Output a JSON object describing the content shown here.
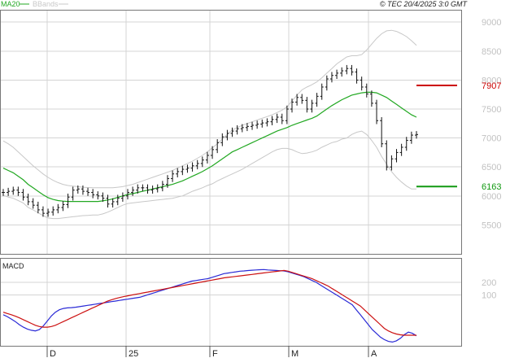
{
  "chart_data": [
    {
      "type": "candlestick",
      "credit": "© TEC 20/4/2025 3:0 GMT",
      "legend": [
        {
          "name": "MA20",
          "color": "#22a822"
        },
        {
          "name": "BBands",
          "color": "#c8c8c8"
        }
      ],
      "y_ticks": [
        "5500",
        "6000",
        "6500",
        "7000",
        "7500",
        "8000",
        "8500",
        "9000"
      ],
      "ylim": [
        5000,
        9200
      ],
      "x_ticks": [
        "D",
        "25",
        "F",
        "M",
        "A"
      ],
      "levels": [
        {
          "label": "7907",
          "value": 7907,
          "color": "#cc0000"
        },
        {
          "label": "6163",
          "value": 6163,
          "color": "#119911"
        }
      ],
      "series": {
        "close": [
          6060,
          6080,
          6100,
          6060,
          5980,
          5900,
          5840,
          5760,
          5700,
          5720,
          5760,
          5800,
          5850,
          5980,
          6100,
          6120,
          6080,
          6060,
          6020,
          6000,
          5960,
          5860,
          5900,
          5960,
          6000,
          6060,
          6100,
          6140,
          6140,
          6100,
          6120,
          6140,
          6200,
          6300,
          6380,
          6420,
          6460,
          6480,
          6520,
          6560,
          6620,
          6700,
          6800,
          6920,
          7020,
          7080,
          7120,
          7160,
          7180,
          7200,
          7220,
          7240,
          7260,
          7280,
          7320,
          7360,
          7300,
          7500,
          7620,
          7700,
          7650,
          7500,
          7600,
          7720,
          7880,
          8020,
          8080,
          8120,
          8160,
          8200,
          8140,
          8000,
          7880,
          7760,
          7600,
          7300,
          6900,
          6500,
          6640,
          6750,
          6840,
          6960,
          7050,
          7060
        ],
        "ma20": [
          6480,
          6440,
          6400,
          6340,
          6280,
          6200,
          6140,
          6080,
          6020,
          5970,
          5940,
          5920,
          5910,
          5905,
          5905,
          5905,
          5905,
          5905,
          5905,
          5905,
          5915,
          5930,
          5950,
          5975,
          6000,
          6025,
          6040,
          6060,
          6080,
          6100,
          6120,
          6140,
          6160,
          6180,
          6200,
          6230,
          6260,
          6300,
          6340,
          6380,
          6420,
          6470,
          6520,
          6580,
          6640,
          6700,
          6760,
          6800,
          6840,
          6880,
          6920,
          6960,
          7000,
          7040,
          7080,
          7120,
          7150,
          7180,
          7220,
          7250,
          7280,
          7310,
          7340,
          7380,
          7440,
          7500,
          7560,
          7610,
          7660,
          7700,
          7740,
          7760,
          7780,
          7790,
          7790,
          7780,
          7740,
          7700,
          7640,
          7580,
          7520,
          7460,
          7400,
          7360
        ],
        "bb_upper": [
          6950,
          6900,
          6840,
          6760,
          6680,
          6600,
          6520,
          6450,
          6380,
          6320,
          6270,
          6230,
          6200,
          6180,
          6170,
          6160,
          6150,
          6145,
          6140,
          6140,
          6140,
          6140,
          6140,
          6150,
          6160,
          6180,
          6200,
          6230,
          6260,
          6290,
          6320,
          6350,
          6380,
          6410,
          6440,
          6480,
          6520,
          6560,
          6600,
          6650,
          6700,
          6760,
          6830,
          6900,
          6980,
          7060,
          7140,
          7180,
          7220,
          7250,
          7280,
          7310,
          7340,
          7370,
          7400,
          7440,
          7480,
          7540,
          7640,
          7740,
          7830,
          7880,
          7920,
          7970,
          8040,
          8120,
          8200,
          8280,
          8340,
          8400,
          8420,
          8420,
          8440,
          8520,
          8620,
          8720,
          8800,
          8850,
          8860,
          8840,
          8800,
          8750,
          8680,
          8600
        ],
        "bb_lower": [
          6010,
          5980,
          5960,
          5920,
          5880,
          5800,
          5760,
          5710,
          5660,
          5620,
          5610,
          5610,
          5620,
          5630,
          5640,
          5650,
          5660,
          5665,
          5670,
          5670,
          5690,
          5720,
          5760,
          5800,
          5840,
          5870,
          5880,
          5890,
          5900,
          5910,
          5920,
          5930,
          5940,
          5950,
          5960,
          5980,
          6000,
          6040,
          6080,
          6110,
          6140,
          6180,
          6210,
          6260,
          6300,
          6340,
          6380,
          6420,
          6460,
          6510,
          6560,
          6610,
          6660,
          6710,
          6760,
          6800,
          6820,
          6820,
          6800,
          6760,
          6730,
          6740,
          6760,
          6790,
          6840,
          6880,
          6920,
          6940,
          6980,
          7000,
          7060,
          7100,
          7120,
          7060,
          6960,
          6840,
          6680,
          6550,
          6420,
          6320,
          6240,
          6170,
          6120,
          6120
        ]
      }
    },
    {
      "type": "line",
      "title": "MACD",
      "y_ticks": [
        "100",
        "200"
      ],
      "ylim": [
        -310,
        390
      ],
      "series": [
        {
          "color": "#2a2ad6",
          "values": [
            -60,
            -75,
            -95,
            -115,
            -140,
            -160,
            -175,
            -185,
            -190,
            -180,
            -150,
            -110,
            -70,
            -40,
            -20,
            -10,
            -5,
            -3,
            0,
            5,
            10,
            15,
            20,
            25,
            30,
            35,
            40,
            45,
            50,
            55,
            60,
            65,
            70,
            75,
            80,
            90,
            100,
            110,
            120,
            130,
            140,
            150,
            160,
            170,
            180,
            190,
            200,
            210,
            215,
            220,
            225,
            230,
            240,
            250,
            260,
            270,
            275,
            280,
            285,
            290,
            292,
            295,
            298,
            300,
            302,
            303,
            300,
            298,
            296,
            294,
            292,
            285,
            275,
            265,
            255,
            245,
            230,
            215,
            200,
            180,
            160,
            140,
            120,
            100,
            80,
            60,
            40,
            20,
            -20,
            -60,
            -100,
            -140,
            -180,
            -210,
            -240,
            -260,
            -275,
            -280,
            -270,
            -250,
            -220,
            -200,
            -210,
            -230
          ]
        },
        {
          "color": "#cc1111",
          "values": [
            -40,
            -50,
            -60,
            -72,
            -85,
            -100,
            -115,
            -130,
            -145,
            -155,
            -160,
            -160,
            -155,
            -145,
            -130,
            -115,
            -100,
            -85,
            -70,
            -55,
            -40,
            -25,
            -10,
            5,
            20,
            35,
            50,
            60,
            70,
            78,
            85,
            92,
            98,
            104,
            110,
            116,
            122,
            128,
            134,
            140,
            146,
            152,
            158,
            164,
            170,
            176,
            182,
            188,
            194,
            200,
            206,
            212,
            218,
            224,
            230,
            236,
            240,
            244,
            248,
            252,
            256,
            260,
            264,
            268,
            272,
            276,
            280,
            284,
            288,
            292,
            296,
            290,
            280,
            270,
            260,
            250,
            240,
            230,
            215,
            200,
            185,
            170,
            150,
            130,
            110,
            90,
            70,
            50,
            30,
            10,
            -20,
            -50,
            -80,
            -110,
            -140,
            -170,
            -190,
            -205,
            -215,
            -222,
            -225,
            -225,
            -225,
            -225
          ]
        }
      ]
    }
  ]
}
